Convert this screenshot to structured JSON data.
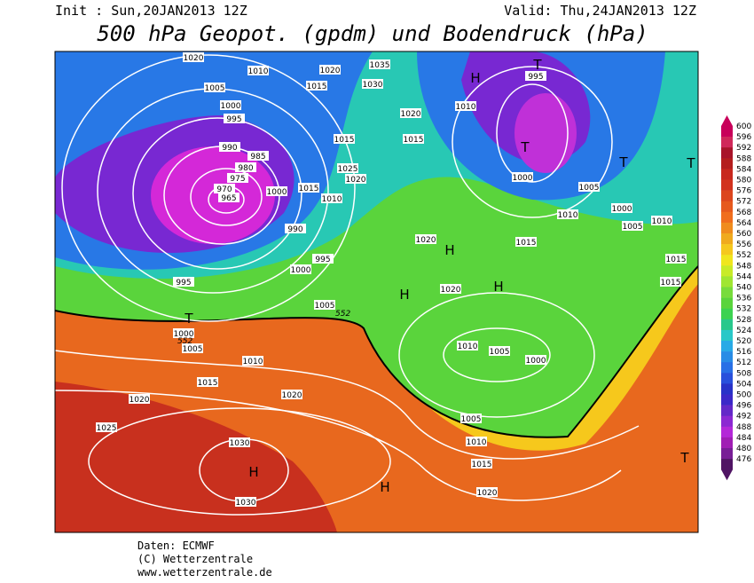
{
  "header": {
    "init": "Init : Sun,20JAN2013 12Z",
    "valid": "Valid: Thu,24JAN2013 12Z",
    "title": "500 hPa Geopot. (gpdm) und Bodendruck (hPa)"
  },
  "legend": {
    "values": [
      600,
      596,
      592,
      588,
      584,
      580,
      576,
      572,
      568,
      564,
      560,
      556,
      552,
      548,
      544,
      540,
      536,
      532,
      528,
      524,
      520,
      516,
      512,
      508,
      504,
      500,
      496,
      492,
      488,
      484,
      480,
      476
    ]
  },
  "map": {
    "isobar_labels": [
      1020,
      1010,
      1020,
      1035,
      1005,
      1015,
      1030,
      995,
      1000,
      995,
      1010,
      1020,
      1015,
      1015,
      990,
      985,
      1025,
      1020,
      980,
      975,
      1000,
      1015,
      970,
      965,
      1010,
      1000,
      1005,
      990,
      1010,
      1000,
      1005,
      1010,
      1020,
      1015,
      995,
      1000,
      1015,
      995,
      1020,
      1015,
      1005,
      1000,
      1005,
      1010,
      1010,
      1005,
      1000,
      1015,
      1020,
      1020,
      1025,
      1005,
      1030,
      1010,
      1015,
      1020,
      1030
    ],
    "contour_labels": [
      552,
      552
    ],
    "markers": [
      "T",
      "H",
      "T",
      "T",
      "T",
      "H",
      "H",
      "H",
      "T",
      "H",
      "H",
      "T"
    ]
  },
  "footer": {
    "source": "Daten: ECMWF",
    "copyright": "(C) Wetterzentrale",
    "url": "www.wetterzentrale.de"
  }
}
